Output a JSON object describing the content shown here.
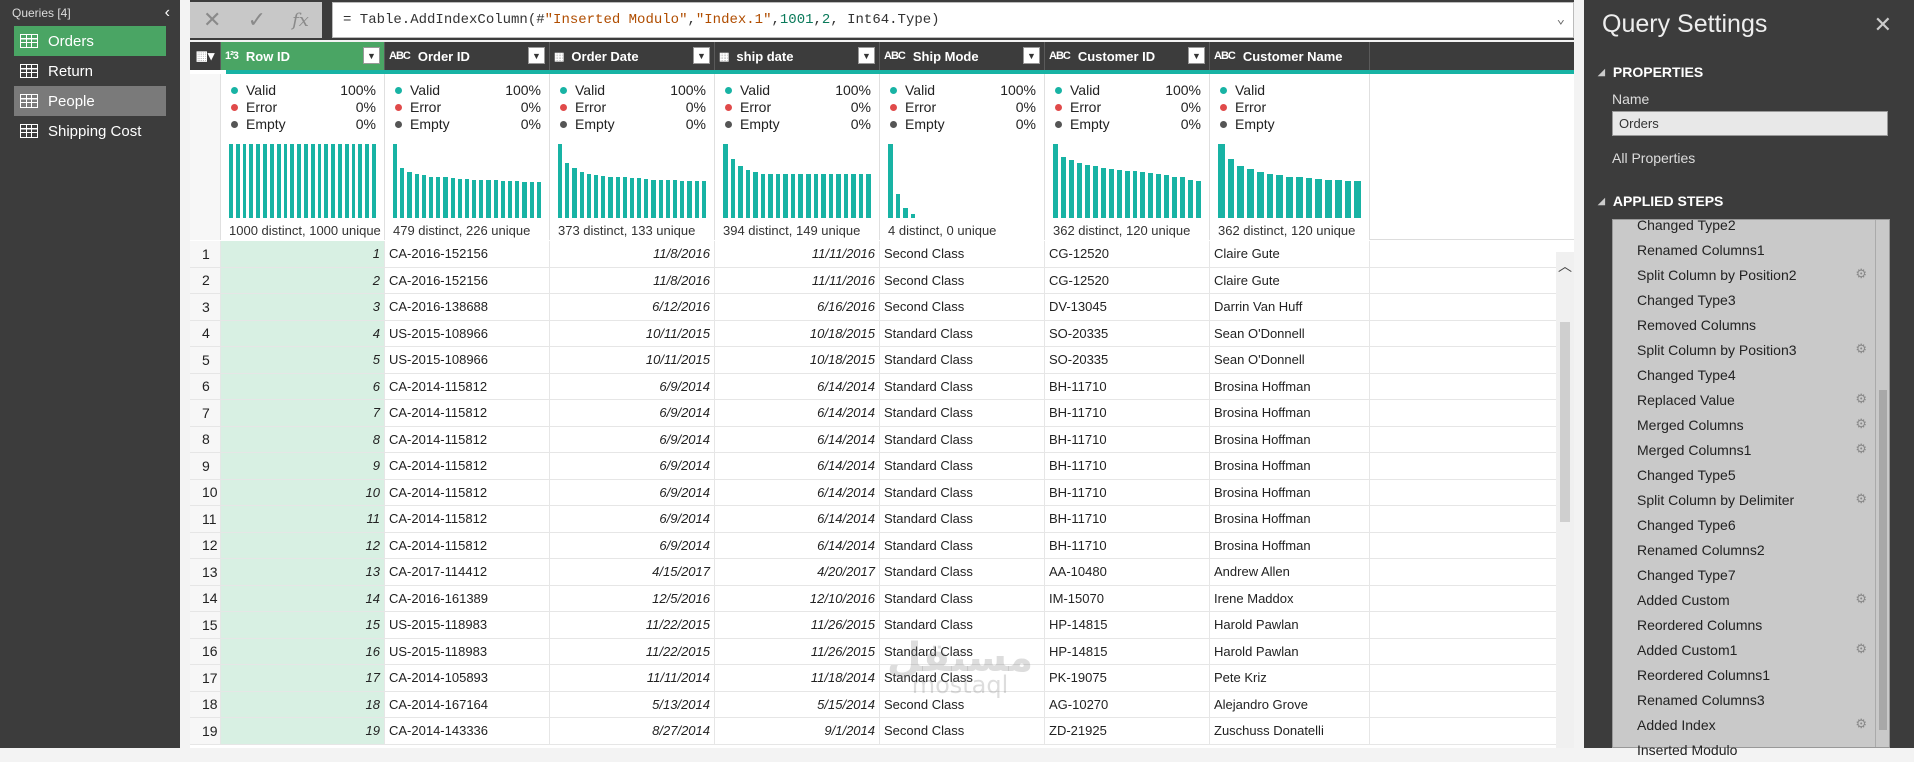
{
  "queries": {
    "header": "Queries [4]",
    "items": [
      {
        "label": "Orders",
        "state": "active"
      },
      {
        "label": "Return",
        "state": ""
      },
      {
        "label": "People",
        "state": "hover"
      },
      {
        "label": "Shipping Cost",
        "state": ""
      }
    ]
  },
  "formula": {
    "prefix": "= Table.AddIndexColumn(#",
    "arg1": "\"Inserted Modulo\"",
    "sep1": ", ",
    "arg2": "\"Index.1\"",
    "sep2": ", ",
    "arg3": "1001",
    "sep3": ", ",
    "arg4": "2",
    "suffix": ", Int64.Type)",
    "cancel_icon": "✕",
    "commit_icon": "✓",
    "fx_label": "fx"
  },
  "columns": [
    {
      "name": "Row ID",
      "type": "1²3",
      "width": 164,
      "selected": true
    },
    {
      "name": "Order ID",
      "type": "ABC",
      "width": 165
    },
    {
      "name": "Order Date",
      "type": "▦",
      "width": 165
    },
    {
      "name": "ship date",
      "type": "▦",
      "width": 165
    },
    {
      "name": "Ship Mode",
      "type": "ABC",
      "width": 165
    },
    {
      "name": "Customer ID",
      "type": "ABC",
      "width": 165
    },
    {
      "name": "Customer Name",
      "type": "ABC",
      "width": 160
    }
  ],
  "profile": {
    "valid_label": "Valid",
    "error_label": "Error",
    "empty_label": "Empty",
    "cols": [
      {
        "valid": "100%",
        "error": "0%",
        "empty": "0%",
        "distinct": "1000 distinct, 1000 unique",
        "bars": [
          1,
          1,
          1,
          1,
          1,
          1,
          1,
          1,
          1,
          1,
          1,
          1,
          1,
          1,
          1,
          1,
          1,
          1,
          1,
          1,
          1,
          1
        ]
      },
      {
        "valid": "100%",
        "error": "0%",
        "empty": "0%",
        "distinct": "479 distinct, 226 unique",
        "bars": [
          1,
          0.68,
          0.62,
          0.6,
          0.58,
          0.56,
          0.55,
          0.55,
          0.54,
          0.53,
          0.53,
          0.52,
          0.52,
          0.51,
          0.51,
          0.5,
          0.5,
          0.5,
          0.49,
          0.49,
          0.49
        ]
      },
      {
        "valid": "100%",
        "error": "0%",
        "empty": "0%",
        "distinct": "373 distinct, 133 unique",
        "bars": [
          1,
          0.75,
          0.68,
          0.62,
          0.6,
          0.58,
          0.57,
          0.56,
          0.55,
          0.55,
          0.54,
          0.54,
          0.53,
          0.52,
          0.52,
          0.51,
          0.51,
          0.5,
          0.5,
          0.5,
          0.5
        ]
      },
      {
        "valid": "100%",
        "error": "0%",
        "empty": "0%",
        "distinct": "394 distinct, 149 unique",
        "bars": [
          1,
          0.8,
          0.7,
          0.65,
          0.62,
          0.6,
          0.6,
          0.6,
          0.6,
          0.6,
          0.6,
          0.6,
          0.6,
          0.6,
          0.6,
          0.6,
          0.6,
          0.6,
          0.6,
          0.6
        ]
      },
      {
        "valid": "100%",
        "error": "0%",
        "empty": "0%",
        "distinct": "4 distinct, 0 unique",
        "bars": [
          1,
          0.32,
          0.14,
          0.05,
          0,
          0,
          0,
          0,
          0,
          0,
          0,
          0,
          0,
          0,
          0,
          0,
          0,
          0,
          0,
          0
        ]
      },
      {
        "valid": "100%",
        "error": "0%",
        "empty": "0%",
        "distinct": "362 distinct, 120 unique",
        "bars": [
          1,
          0.82,
          0.78,
          0.75,
          0.72,
          0.7,
          0.68,
          0.66,
          0.65,
          0.64,
          0.63,
          0.62,
          0.61,
          0.6,
          0.58,
          0.56,
          0.55,
          0.52,
          0.5
        ]
      },
      {
        "valid": "",
        "error": "",
        "empty": "",
        "distinct": "362 distinct, 120 unique",
        "bars": [
          1,
          0.8,
          0.7,
          0.66,
          0.62,
          0.6,
          0.58,
          0.56,
          0.55,
          0.54,
          0.53,
          0.52,
          0.51,
          0.5,
          0.5
        ]
      }
    ]
  },
  "rows": [
    [
      "1",
      "1",
      "CA-2016-152156",
      "11/8/2016",
      "11/11/2016",
      "Second Class",
      "CG-12520",
      "Claire Gute"
    ],
    [
      "2",
      "2",
      "CA-2016-152156",
      "11/8/2016",
      "11/11/2016",
      "Second Class",
      "CG-12520",
      "Claire Gute"
    ],
    [
      "3",
      "3",
      "CA-2016-138688",
      "6/12/2016",
      "6/16/2016",
      "Second Class",
      "DV-13045",
      "Darrin Van Huff"
    ],
    [
      "4",
      "4",
      "US-2015-108966",
      "10/11/2015",
      "10/18/2015",
      "Standard Class",
      "SO-20335",
      "Sean O'Donnell"
    ],
    [
      "5",
      "5",
      "US-2015-108966",
      "10/11/2015",
      "10/18/2015",
      "Standard Class",
      "SO-20335",
      "Sean O'Donnell"
    ],
    [
      "6",
      "6",
      "CA-2014-115812",
      "6/9/2014",
      "6/14/2014",
      "Standard Class",
      "BH-11710",
      "Brosina Hoffman"
    ],
    [
      "7",
      "7",
      "CA-2014-115812",
      "6/9/2014",
      "6/14/2014",
      "Standard Class",
      "BH-11710",
      "Brosina Hoffman"
    ],
    [
      "8",
      "8",
      "CA-2014-115812",
      "6/9/2014",
      "6/14/2014",
      "Standard Class",
      "BH-11710",
      "Brosina Hoffman"
    ],
    [
      "9",
      "9",
      "CA-2014-115812",
      "6/9/2014",
      "6/14/2014",
      "Standard Class",
      "BH-11710",
      "Brosina Hoffman"
    ],
    [
      "10",
      "10",
      "CA-2014-115812",
      "6/9/2014",
      "6/14/2014",
      "Standard Class",
      "BH-11710",
      "Brosina Hoffman"
    ],
    [
      "11",
      "11",
      "CA-2014-115812",
      "6/9/2014",
      "6/14/2014",
      "Standard Class",
      "BH-11710",
      "Brosina Hoffman"
    ],
    [
      "12",
      "12",
      "CA-2014-115812",
      "6/9/2014",
      "6/14/2014",
      "Standard Class",
      "BH-11710",
      "Brosina Hoffman"
    ],
    [
      "13",
      "13",
      "CA-2017-114412",
      "4/15/2017",
      "4/20/2017",
      "Standard Class",
      "AA-10480",
      "Andrew Allen"
    ],
    [
      "14",
      "14",
      "CA-2016-161389",
      "12/5/2016",
      "12/10/2016",
      "Standard Class",
      "IM-15070",
      "Irene Maddox"
    ],
    [
      "15",
      "15",
      "US-2015-118983",
      "11/22/2015",
      "11/26/2015",
      "Standard Class",
      "HP-14815",
      "Harold Pawlan"
    ],
    [
      "16",
      "16",
      "US-2015-118983",
      "11/22/2015",
      "11/26/2015",
      "Standard Class",
      "HP-14815",
      "Harold Pawlan"
    ],
    [
      "17",
      "17",
      "CA-2014-105893",
      "11/11/2014",
      "11/18/2014",
      "Standard Class",
      "PK-19075",
      "Pete Kriz"
    ],
    [
      "18",
      "18",
      "CA-2014-167164",
      "5/13/2014",
      "5/15/2014",
      "Second Class",
      "AG-10270",
      "Alejandro Grove"
    ],
    [
      "19",
      "19",
      "CA-2014-143336",
      "8/27/2014",
      "9/1/2014",
      "Second Class",
      "ZD-21925",
      "Zuschuss Donatelli"
    ]
  ],
  "watermark": {
    "line1": "مستقل",
    "line2": "mostaql"
  },
  "settings": {
    "title": "Query Settings",
    "close_icon": "✕",
    "properties_header": "PROPERTIES",
    "name_label": "Name",
    "name_value": "Orders",
    "all_properties": "All Properties",
    "applied_steps_header": "APPLIED STEPS",
    "steps": [
      {
        "label": "Changed Type2",
        "gear": false
      },
      {
        "label": "Renamed Columns1",
        "gear": false
      },
      {
        "label": "Split Column by Position2",
        "gear": true
      },
      {
        "label": "Changed Type3",
        "gear": false
      },
      {
        "label": "Removed Columns",
        "gear": false
      },
      {
        "label": "Split Column by Position3",
        "gear": true
      },
      {
        "label": "Changed Type4",
        "gear": false
      },
      {
        "label": "Replaced Value",
        "gear": true
      },
      {
        "label": "Merged Columns",
        "gear": true
      },
      {
        "label": "Merged Columns1",
        "gear": true
      },
      {
        "label": "Changed Type5",
        "gear": false
      },
      {
        "label": "Split Column by Delimiter",
        "gear": true
      },
      {
        "label": "Changed Type6",
        "gear": false
      },
      {
        "label": "Renamed Columns2",
        "gear": false
      },
      {
        "label": "Changed Type7",
        "gear": false
      },
      {
        "label": "Added Custom",
        "gear": true
      },
      {
        "label": "Reordered Columns",
        "gear": false
      },
      {
        "label": "Added Custom1",
        "gear": true
      },
      {
        "label": "Reordered Columns1",
        "gear": false
      },
      {
        "label": "Renamed Columns3",
        "gear": false
      },
      {
        "label": "Added Index",
        "gear": true
      },
      {
        "label": "Inserted Modulo",
        "gear": false
      }
    ]
  },
  "colors": {
    "accent": "#18b3a4",
    "selected": "#4aa564",
    "valid": "#18b3a4",
    "error": "#e04a4a",
    "empty": "#555555"
  }
}
